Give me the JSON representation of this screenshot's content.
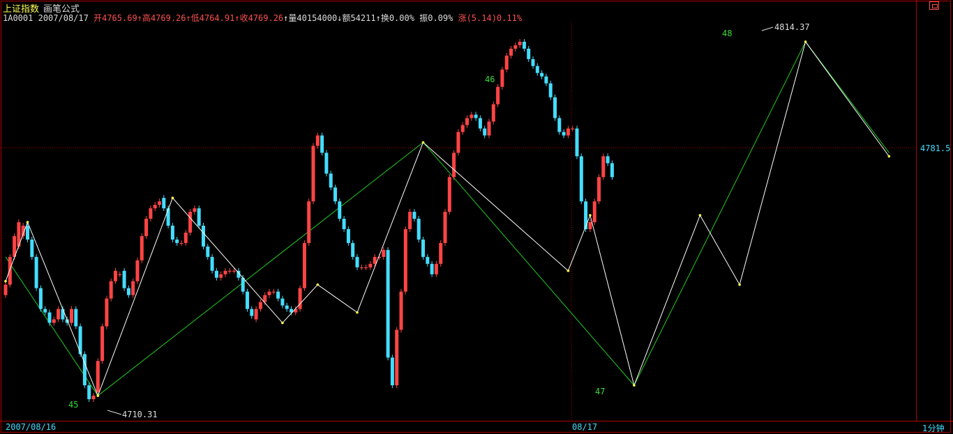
{
  "header": {
    "index_name": "上证指数",
    "formula_name": "画笔公式",
    "code": "1A0001",
    "date": "2007/08/17",
    "open_label": "开",
    "open": "4765.69",
    "high_label": "高",
    "high": "4769.26",
    "low_label": "低",
    "low": "4764.91",
    "close_label": "收",
    "close": "4769.26",
    "volume_label": "量",
    "volume": "40154000",
    "amount_label": "额",
    "amount": "54211",
    "turnover_label": "换",
    "turnover": "0.00%",
    "amplitude_label": "振",
    "amplitude": "0.09%",
    "change_label": "涨",
    "change": "(5.14)0.11%"
  },
  "axis": {
    "x_left": "2007/08/16",
    "x_mid": "08/17",
    "period": "1分钟",
    "current_price": "4781.5"
  },
  "annotations": {
    "stroke_45": "45",
    "stroke_46": "46",
    "stroke_47": "47",
    "stroke_48": "48",
    "low_price": "4710.31",
    "high_price": "4814.37"
  },
  "colors": {
    "up": "#ff4444",
    "down": "#44ddff",
    "stroke_line": "#ffffff",
    "segment_line": "#22cc22",
    "label": "#33dd33",
    "axis": "#b00000"
  },
  "chart_data": {
    "type": "candlestick",
    "y_range": [
      4708,
      4818
    ],
    "bi_points": [
      [
        0,
        4745
      ],
      [
        5,
        4762
      ],
      [
        21,
        4712
      ],
      [
        38,
        4769
      ],
      [
        63,
        4733
      ],
      [
        71,
        4744
      ],
      [
        80,
        4736
      ],
      [
        95,
        4785
      ],
      [
        128,
        4748
      ],
      [
        133,
        4764
      ],
      [
        143,
        4715
      ],
      [
        158,
        4764
      ],
      [
        167,
        4744
      ],
      [
        182,
        4814
      ],
      [
        201,
        4781
      ]
    ],
    "segment_points": [
      [
        0,
        4752
      ],
      [
        21,
        4712
      ],
      [
        95,
        4785
      ],
      [
        143,
        4715
      ],
      [
        182,
        4814
      ],
      [
        201,
        4782
      ]
    ],
    "candles": [
      [
        4741,
        4744
      ],
      [
        4744,
        4752
      ],
      [
        4752,
        4758
      ],
      [
        4755,
        4762
      ],
      [
        4758,
        4761
      ],
      [
        4761,
        4757
      ],
      [
        4757,
        4752
      ],
      [
        4752,
        4743
      ],
      [
        4743,
        4737
      ],
      [
        4737,
        4736
      ],
      [
        4736,
        4733
      ],
      [
        4733,
        4734
      ],
      [
        4734,
        4737
      ],
      [
        4737,
        4734
      ],
      [
        4734,
        4733
      ],
      [
        4733,
        4737
      ],
      [
        4737,
        4732
      ],
      [
        4732,
        4724
      ],
      [
        4724,
        4715
      ],
      [
        4715,
        4711
      ],
      [
        4711,
        4712
      ],
      [
        4713,
        4722
      ],
      [
        4722,
        4732
      ],
      [
        4732,
        4740
      ],
      [
        4740,
        4745
      ],
      [
        4745,
        4748
      ],
      [
        4747,
        4747
      ],
      [
        4748,
        4743
      ],
      [
        4743,
        4741
      ],
      [
        4741,
        4745
      ],
      [
        4745,
        4751
      ],
      [
        4751,
        4758
      ],
      [
        4758,
        4763
      ],
      [
        4763,
        4766
      ],
      [
        4766,
        4767
      ],
      [
        4767,
        4768
      ],
      [
        4769,
        4766
      ],
      [
        4766,
        4761
      ],
      [
        4761,
        4757
      ],
      [
        4757,
        4756
      ],
      [
        4756,
        4756
      ],
      [
        4756,
        4759
      ],
      [
        4759,
        4765
      ],
      [
        4765,
        4766
      ],
      [
        4766,
        4761
      ],
      [
        4761,
        4755
      ],
      [
        4755,
        4752
      ],
      [
        4752,
        4748
      ],
      [
        4748,
        4746
      ],
      [
        4746,
        4747
      ],
      [
        4747,
        4748
      ],
      [
        4748,
        4748
      ],
      [
        4748,
        4748
      ],
      [
        4748,
        4746
      ],
      [
        4746,
        4742
      ],
      [
        4742,
        4737
      ],
      [
        4737,
        4735
      ],
      [
        4734,
        4737
      ],
      [
        4737,
        4739
      ],
      [
        4739,
        4741
      ],
      [
        4741,
        4742
      ],
      [
        4742,
        4742
      ],
      [
        4742,
        4740
      ],
      [
        4740,
        4738
      ],
      [
        4738,
        4737
      ],
      [
        4737,
        4736
      ],
      [
        4736,
        4737
      ],
      [
        4737,
        4743
      ],
      [
        4743,
        4756
      ],
      [
        4756,
        4768
      ],
      [
        4768,
        4784
      ],
      [
        4784,
        4787
      ],
      [
        4787,
        4782
      ],
      [
        4782,
        4776
      ],
      [
        4776,
        4772
      ],
      [
        4772,
        4768
      ],
      [
        4768,
        4763
      ],
      [
        4763,
        4760
      ],
      [
        4760,
        4756
      ],
      [
        4756,
        4752
      ],
      [
        4752,
        4749
      ],
      [
        4749,
        4749
      ],
      [
        4749,
        4749
      ],
      [
        4749,
        4750
      ],
      [
        4750,
        4752
      ],
      [
        4752,
        4752
      ],
      [
        4752,
        4754
      ],
      [
        4754,
        4723
      ],
      [
        4723,
        4715
      ],
      [
        4715,
        4731
      ],
      [
        4731,
        4742
      ],
      [
        4742,
        4760
      ],
      [
        4760,
        4765
      ],
      [
        4765,
        4763
      ],
      [
        4763,
        4757
      ],
      [
        4757,
        4752
      ],
      [
        4752,
        4750
      ],
      [
        4750,
        4747
      ],
      [
        4747,
        4750
      ],
      [
        4750,
        4756
      ],
      [
        4756,
        4765
      ],
      [
        4765,
        4775
      ],
      [
        4775,
        4782
      ],
      [
        4782,
        4788
      ],
      [
        4788,
        4790
      ],
      [
        4790,
        4792
      ],
      [
        4792,
        4793
      ],
      [
        4793,
        4792
      ],
      [
        4792,
        4789
      ],
      [
        4789,
        4787
      ],
      [
        4787,
        4791
      ],
      [
        4791,
        4796
      ],
      [
        4796,
        4801
      ],
      [
        4801,
        4806
      ],
      [
        4806,
        4810
      ],
      [
        4810,
        4812
      ],
      [
        4812,
        4813
      ],
      [
        4813,
        4814
      ],
      [
        4814,
        4812
      ],
      [
        4812,
        4809
      ],
      [
        4809,
        4807
      ],
      [
        4807,
        4805
      ],
      [
        4805,
        4804
      ],
      [
        4804,
        4802
      ],
      [
        4802,
        4798
      ],
      [
        4798,
        4792
      ],
      [
        4792,
        4788
      ],
      [
        4788,
        4787
      ],
      [
        4787,
        4789
      ],
      [
        4789,
        4789
      ],
      [
        4789,
        4781
      ],
      [
        4781,
        4768
      ],
      [
        4768,
        4760
      ],
      [
        4760,
        4762
      ],
      [
        4762,
        4768
      ],
      [
        4768,
        4775
      ],
      [
        4775,
        4781
      ],
      [
        4781,
        4779
      ],
      [
        4779,
        4775
      ]
    ]
  }
}
